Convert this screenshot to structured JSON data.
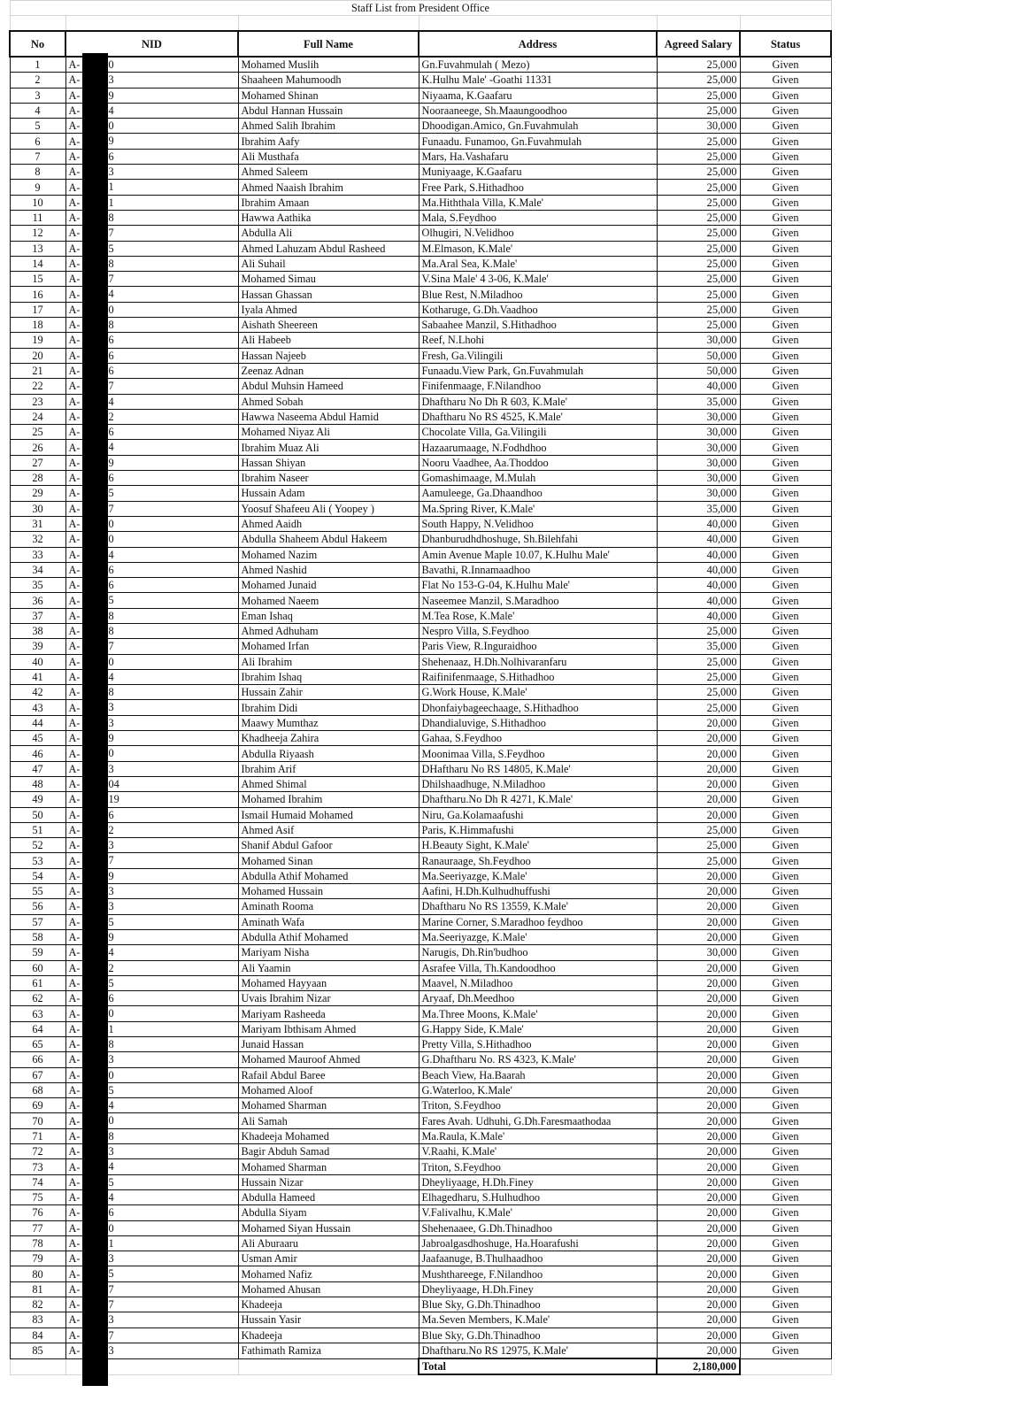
{
  "document": {
    "title": "Staff List from President Office",
    "columns": [
      "No",
      "NID",
      "Full Name",
      "Address",
      "Agreed Salary",
      "Status"
    ],
    "nid_prefix": "A-",
    "rows": [
      {
        "no": "1",
        "nid_end": "0",
        "name": "Mohamed Muslih",
        "address": "Gn.Fuvahmulah ( Mezo)",
        "salary": "25,000",
        "status": "Given"
      },
      {
        "no": "2",
        "nid_end": "3",
        "name": "Shaaheen Mahumoodh",
        "address": "K.Hulhu Male' -Goathi 11331",
        "salary": "25,000",
        "status": "Given"
      },
      {
        "no": "3",
        "nid_end": "9",
        "name": "Mohamed Shinan",
        "address": "Niyaama, K.Gaafaru",
        "salary": "25,000",
        "status": "Given"
      },
      {
        "no": "4",
        "nid_end": "4",
        "name": "Abdul Hannan Hussain",
        "address": "Nooraaneege, Sh.Maaungoodhoo",
        "salary": "25,000",
        "status": "Given"
      },
      {
        "no": "5",
        "nid_end": "0",
        "name": "Ahmed Salih Ibrahim",
        "address": "Dhoodigan.Amico, Gn.Fuvahmulah",
        "salary": "30,000",
        "status": "Given"
      },
      {
        "no": "6",
        "nid_end": "9",
        "name": "Ibrahim Aafy",
        "address": "Funaadu. Funamoo, Gn.Fuvahmulah",
        "salary": "25,000",
        "status": "Given"
      },
      {
        "no": "7",
        "nid_end": "6",
        "name": "Ali Musthafa",
        "address": "Mars, Ha.Vashafaru",
        "salary": "25,000",
        "status": "Given"
      },
      {
        "no": "8",
        "nid_end": "3",
        "name": "Ahmed Saleem",
        "address": "Muniyaage, K.Gaafaru",
        "salary": "25,000",
        "status": "Given"
      },
      {
        "no": "9",
        "nid_end": "1",
        "name": "Ahmed Naaish Ibrahim",
        "address": "Free Park, S.Hithadhoo",
        "salary": "25,000",
        "status": "Given"
      },
      {
        "no": "10",
        "nid_end": "1",
        "name": "Ibrahim Amaan",
        "address": "Ma.Hiththala Villa, K.Male'",
        "salary": "25,000",
        "status": "Given"
      },
      {
        "no": "11",
        "nid_end": "8",
        "name": "Hawwa Aathika",
        "address": "Mala, S.Feydhoo",
        "salary": "25,000",
        "status": "Given"
      },
      {
        "no": "12",
        "nid_end": "7",
        "name": "Abdulla Ali",
        "address": "Olhugiri, N.Velidhoo",
        "salary": "25,000",
        "status": "Given"
      },
      {
        "no": "13",
        "nid_end": "5",
        "name": "Ahmed Lahuzam Abdul Rasheed",
        "address": "M.Elmason, K.Male'",
        "salary": "25,000",
        "status": "Given"
      },
      {
        "no": "14",
        "nid_end": "8",
        "name": "Ali Suhail",
        "address": "Ma.Aral Sea, K.Male'",
        "salary": "25,000",
        "status": "Given"
      },
      {
        "no": "15",
        "nid_end": "7",
        "name": "Mohamed Simau",
        "address": "V.Sina Male' 4 3-06, K.Male'",
        "salary": "25,000",
        "status": "Given"
      },
      {
        "no": "16",
        "nid_end": "4",
        "name": "Hassan Ghassan",
        "address": "Blue Rest, N.Miladhoo",
        "salary": "25,000",
        "status": "Given"
      },
      {
        "no": "17",
        "nid_end": "0",
        "name": "Iyala Ahmed",
        "address": "Kotharuge, G.Dh.Vaadhoo",
        "salary": "25,000",
        "status": "Given"
      },
      {
        "no": "18",
        "nid_end": "8",
        "name": "Aishath Sheereen",
        "address": "Sabaahee Manzil, S.Hithadhoo",
        "salary": "25,000",
        "status": "Given"
      },
      {
        "no": "19",
        "nid_end": "6",
        "name": "Ali Habeeb",
        "address": "Reef, N.Lhohi",
        "salary": "30,000",
        "status": "Given"
      },
      {
        "no": "20",
        "nid_end": "6",
        "name": "Hassan Najeeb",
        "address": "Fresh, Ga.Vilingili",
        "salary": "50,000",
        "status": "Given"
      },
      {
        "no": "21",
        "nid_end": "6",
        "name": "Zeenaz Adnan",
        "address": "Funaadu.View Park, Gn.Fuvahmulah",
        "salary": "50,000",
        "status": "Given"
      },
      {
        "no": "22",
        "nid_end": "7",
        "name": "Abdul Muhsin Hameed",
        "address": "Finifenmaage, F.Nilandhoo",
        "salary": "40,000",
        "status": "Given"
      },
      {
        "no": "23",
        "nid_end": "4",
        "name": "Ahmed Sobah",
        "address": "Dhaftharu No Dh R 603, K.Male'",
        "salary": "35,000",
        "status": "Given"
      },
      {
        "no": "24",
        "nid_end": "2",
        "name": "Hawwa Naseema Abdul Hamid",
        "address": "Dhaftharu No RS 4525, K.Male'",
        "salary": "30,000",
        "status": "Given"
      },
      {
        "no": "25",
        "nid_end": "6",
        "name": "Mohamed Niyaz Ali",
        "address": "Chocolate Villa, Ga.Vilingili",
        "salary": "30,000",
        "status": "Given"
      },
      {
        "no": "26",
        "nid_end": "4",
        "name": "Ibrahim Muaz Ali",
        "address": "Hazaarumaage, N.Fodhdhoo",
        "salary": "30,000",
        "status": "Given"
      },
      {
        "no": "27",
        "nid_end": "9",
        "name": "Hassan Shiyan",
        "address": "Nooru Vaadhee, Aa.Thoddoo",
        "salary": "30,000",
        "status": "Given"
      },
      {
        "no": "28",
        "nid_end": "6",
        "name": "Ibrahim Naseer",
        "address": "Gomashimaage, M.Mulah",
        "salary": "30,000",
        "status": "Given"
      },
      {
        "no": "29",
        "nid_end": "5",
        "name": "Hussain Adam",
        "address": "Aamuleege, Ga.Dhaandhoo",
        "salary": "30,000",
        "status": "Given"
      },
      {
        "no": "30",
        "nid_end": "7",
        "name": "Yoosuf Shafeeu Ali ( Yoopey )",
        "address": "Ma.Spring River, K.Male'",
        "salary": "35,000",
        "status": "Given"
      },
      {
        "no": "31",
        "nid_end": "0",
        "name": "Ahmed Aaidh",
        "address": "South Happy, N.Velidhoo",
        "salary": "40,000",
        "status": "Given"
      },
      {
        "no": "32",
        "nid_end": "0",
        "name": "Abdulla Shaheem Abdul Hakeem",
        "address": "Dhanburudhdhoshuge, Sh.Bilehfahi",
        "salary": "40,000",
        "status": "Given"
      },
      {
        "no": "33",
        "nid_end": "4",
        "name": "Mohamed Nazim",
        "address": "Amin Avenue Maple 10.07, K.Hulhu Male'",
        "salary": "40,000",
        "status": "Given"
      },
      {
        "no": "34",
        "nid_end": "6",
        "name": "Ahmed Nashid",
        "address": "Bavathi, R.Innamaadhoo",
        "salary": "40,000",
        "status": "Given"
      },
      {
        "no": "35",
        "nid_end": "6",
        "name": "Mohamed Junaid",
        "address": "Flat No 153-G-04, K.Hulhu Male'",
        "salary": "40,000",
        "status": "Given"
      },
      {
        "no": "36",
        "nid_end": "5",
        "name": "Mohamed Naeem",
        "address": "Naseemee Manzil, S.Maradhoo",
        "salary": "40,000",
        "status": "Given"
      },
      {
        "no": "37",
        "nid_end": "8",
        "name": "Eman Ishaq",
        "address": "M.Tea Rose, K.Male'",
        "salary": "40,000",
        "status": "Given"
      },
      {
        "no": "38",
        "nid_end": "8",
        "name": "Ahmed Adhuham",
        "address": "Nespro Villa, S.Feydhoo",
        "salary": "25,000",
        "status": "Given"
      },
      {
        "no": "39",
        "nid_end": "7",
        "name": "Mohamed Irfan",
        "address": "Paris View, R.Inguraidhoo",
        "salary": "35,000",
        "status": "Given"
      },
      {
        "no": "40",
        "nid_end": "0",
        "name": "Ali Ibrahim",
        "address": "Shehenaaz, H.Dh.Nolhivaranfaru",
        "salary": "25,000",
        "status": "Given"
      },
      {
        "no": "41",
        "nid_end": "4",
        "name": "Ibrahim Ishaq",
        "address": "Raifinifenmaage, S.Hithadhoo",
        "salary": "25,000",
        "status": "Given"
      },
      {
        "no": "42",
        "nid_end": "8",
        "name": "Hussain Zahir",
        "address": "G.Work House, K.Male'",
        "salary": "25,000",
        "status": "Given"
      },
      {
        "no": "43",
        "nid_end": "3",
        "name": "Ibrahim Didi",
        "address": "Dhonfaiybageechaage, S.Hithadhoo",
        "salary": "25,000",
        "status": "Given"
      },
      {
        "no": "44",
        "nid_end": "3",
        "name": "Maawy Mumthaz",
        "address": "Dhandialuvige, S.Hithadhoo",
        "salary": "20,000",
        "status": "Given"
      },
      {
        "no": "45",
        "nid_end": "9",
        "name": "Khadheeja Zahira",
        "address": "Gahaa, S.Feydhoo",
        "salary": "20,000",
        "status": "Given"
      },
      {
        "no": "46",
        "nid_end": "0",
        "name": "Abdulla Riyaash",
        "address": "Moonimaa Villa, S.Feydhoo",
        "salary": "20,000",
        "status": "Given"
      },
      {
        "no": "47",
        "nid_end": "3",
        "name": "Ibrahim Arif",
        "address": "DHaftharu No RS 14805, K.Male'",
        "salary": "20,000",
        "status": "Given"
      },
      {
        "no": "48",
        "nid_end": "04",
        "name": "Ahmed Shimal",
        "address": "Dhilshaadhuge, N.Miladhoo",
        "salary": "20,000",
        "status": "Given"
      },
      {
        "no": "49",
        "nid_end": "19",
        "name": "Mohamed Ibrahim",
        "address": "Dhaftharu.No Dh R 4271, K.Male'",
        "salary": "20,000",
        "status": "Given"
      },
      {
        "no": "50",
        "nid_end": "6",
        "name": "Ismail Humaid Mohamed",
        "address": "Niru, Ga.Kolamaafushi",
        "salary": "20,000",
        "status": "Given"
      },
      {
        "no": "51",
        "nid_end": "2",
        "name": "Ahmed Asif",
        "address": "Paris, K.Himmafushi",
        "salary": "25,000",
        "status": "Given"
      },
      {
        "no": "52",
        "nid_end": "3",
        "name": "Shanif Abdul Gafoor",
        "address": "H.Beauty Sight, K.Male'",
        "salary": "25,000",
        "status": "Given"
      },
      {
        "no": "53",
        "nid_end": "7",
        "name": "Mohamed Sinan",
        "address": "Ranauraage, Sh.Feydhoo",
        "salary": "25,000",
        "status": "Given"
      },
      {
        "no": "54",
        "nid_end": "9",
        "name": "Abdulla Athif Mohamed",
        "address": "Ma.Seeriyazge, K.Male'",
        "salary": "20,000",
        "status": "Given"
      },
      {
        "no": "55",
        "nid_end": "3",
        "name": "Mohamed Hussain",
        "address": "Aafini, H.Dh.Kulhudhuffushi",
        "salary": "20,000",
        "status": "Given"
      },
      {
        "no": "56",
        "nid_end": "3",
        "name": "Aminath Rooma",
        "address": "Dhaftharu No RS 13559, K.Male'",
        "salary": "20,000",
        "status": "Given"
      },
      {
        "no": "57",
        "nid_end": "5",
        "name": "Aminath Wafa",
        "address": "Marine Corner, S.Maradhoo feydhoo",
        "salary": "20,000",
        "status": "Given"
      },
      {
        "no": "58",
        "nid_end": "9",
        "name": "Abdulla Athif Mohamed",
        "address": "Ma.Seeriyazge, K.Male'",
        "salary": "20,000",
        "status": "Given"
      },
      {
        "no": "59",
        "nid_end": "4",
        "name": "Mariyam Nisha",
        "address": "Narugis, Dh.Rin'budhoo",
        "salary": "30,000",
        "status": "Given"
      },
      {
        "no": "60",
        "nid_end": "2",
        "name": "Ali Yaamin",
        "address": "Asrafee Villa, Th.Kandoodhoo",
        "salary": "20,000",
        "status": "Given"
      },
      {
        "no": "61",
        "nid_end": "5",
        "name": "Mohamed Hayyaan",
        "address": "Maavel, N.Miladhoo",
        "salary": "20,000",
        "status": "Given"
      },
      {
        "no": "62",
        "nid_end": "6",
        "name": "Uvais Ibrahim Nizar",
        "address": "Aryaaf, Dh.Meedhoo",
        "salary": "20,000",
        "status": "Given"
      },
      {
        "no": "63",
        "nid_end": "0",
        "name": "Mariyam Rasheeda",
        "address": "Ma.Three Moons, K.Male'",
        "salary": "20,000",
        "status": "Given"
      },
      {
        "no": "64",
        "nid_end": "1",
        "name": "Mariyam Ibthisam Ahmed",
        "address": "G.Happy Side, K.Male'",
        "salary": "20,000",
        "status": "Given"
      },
      {
        "no": "65",
        "nid_end": "8",
        "name": "Junaid Hassan",
        "address": "Pretty Villa, S.Hithadhoo",
        "salary": "20,000",
        "status": "Given"
      },
      {
        "no": "66",
        "nid_end": "3",
        "name": "Mohamed Mauroof Ahmed",
        "address": "G.Dhaftharu No. RS 4323, K.Male'",
        "salary": "20,000",
        "status": "Given"
      },
      {
        "no": "67",
        "nid_end": "0",
        "name": "Rafail Abdul Baree",
        "address": "Beach View, Ha.Baarah",
        "salary": "20,000",
        "status": "Given"
      },
      {
        "no": "68",
        "nid_end": "5",
        "name": "Mohamed Aloof",
        "address": "G.Waterloo, K.Male'",
        "salary": "20,000",
        "status": "Given"
      },
      {
        "no": "69",
        "nid_end": "4",
        "name": "Mohamed Sharman",
        "address": "Triton, S.Feydhoo",
        "salary": "20,000",
        "status": "Given"
      },
      {
        "no": "70",
        "nid_end": "0",
        "name": "Ali Samah",
        "address": "Fares Avah. Udhuhi, G.Dh.Faresmaathodaa",
        "salary": "20,000",
        "status": "Given"
      },
      {
        "no": "71",
        "nid_end": "8",
        "name": "Khadeeja Mohamed",
        "address": "Ma.Raula, K.Male'",
        "salary": "20,000",
        "status": "Given"
      },
      {
        "no": "72",
        "nid_end": "3",
        "name": "Bagir Abduh Samad",
        "address": "V.Raahi, K.Male'",
        "salary": "20,000",
        "status": "Given"
      },
      {
        "no": "73",
        "nid_end": "4",
        "name": "Mohamed Sharman",
        "address": "Triton, S.Feydhoo",
        "salary": "20,000",
        "status": "Given"
      },
      {
        "no": "74",
        "nid_end": "5",
        "name": "Hussain Nizar",
        "address": "Dheyliyaage, H.Dh.Finey",
        "salary": "20,000",
        "status": "Given"
      },
      {
        "no": "75",
        "nid_end": "4",
        "name": "Abdulla Hameed",
        "address": "Elhagedharu, S.Hulhudhoo",
        "salary": "20,000",
        "status": "Given"
      },
      {
        "no": "76",
        "nid_end": "6",
        "name": "Abdulla Siyam",
        "address": "V.Falivalhu, K.Male'",
        "salary": "20,000",
        "status": "Given"
      },
      {
        "no": "77",
        "nid_end": "0",
        "name": "Mohamed Siyan Hussain",
        "address": "Shehenaaee, G.Dh.Thinadhoo",
        "salary": "20,000",
        "status": "Given"
      },
      {
        "no": "78",
        "nid_end": "1",
        "name": "Ali Aburaaru",
        "address": "Jabroalgasdhoshuge, Ha.Hoarafushi",
        "salary": "20,000",
        "status": "Given"
      },
      {
        "no": "79",
        "nid_end": "3",
        "name": "Usman Amir",
        "address": "Jaafaanuge, B.Thulhaadhoo",
        "salary": "20,000",
        "status": "Given"
      },
      {
        "no": "80",
        "nid_end": "5",
        "name": "Mohamed Nafiz",
        "address": "Mushthareege, F.Nilandhoo",
        "salary": "20,000",
        "status": "Given"
      },
      {
        "no": "81",
        "nid_end": "7",
        "name": "Mohamed Ahusan",
        "address": "Dheyliyaage, H.Dh.Finey",
        "salary": "20,000",
        "status": "Given"
      },
      {
        "no": "82",
        "nid_end": "7",
        "name": "Khadeeja",
        "address": "Blue Sky, G.Dh.Thinadhoo",
        "salary": "20,000",
        "status": "Given"
      },
      {
        "no": "83",
        "nid_end": "3",
        "name": "Hussain Yasir",
        "address": "Ma.Seven Members, K.Male'",
        "salary": "20,000",
        "status": "Given"
      },
      {
        "no": "84",
        "nid_end": "7",
        "name": "Khadeeja",
        "address": "Blue Sky, G.Dh.Thinadhoo",
        "salary": "20,000",
        "status": "Given"
      },
      {
        "no": "85",
        "nid_end": "3",
        "name": "Fathimath Ramiza",
        "address": "Dhaftharu.No RS 12975, K.Male'",
        "salary": "20,000",
        "status": "Given"
      }
    ],
    "total_label": "Total",
    "total_value": "2,180,000"
  }
}
